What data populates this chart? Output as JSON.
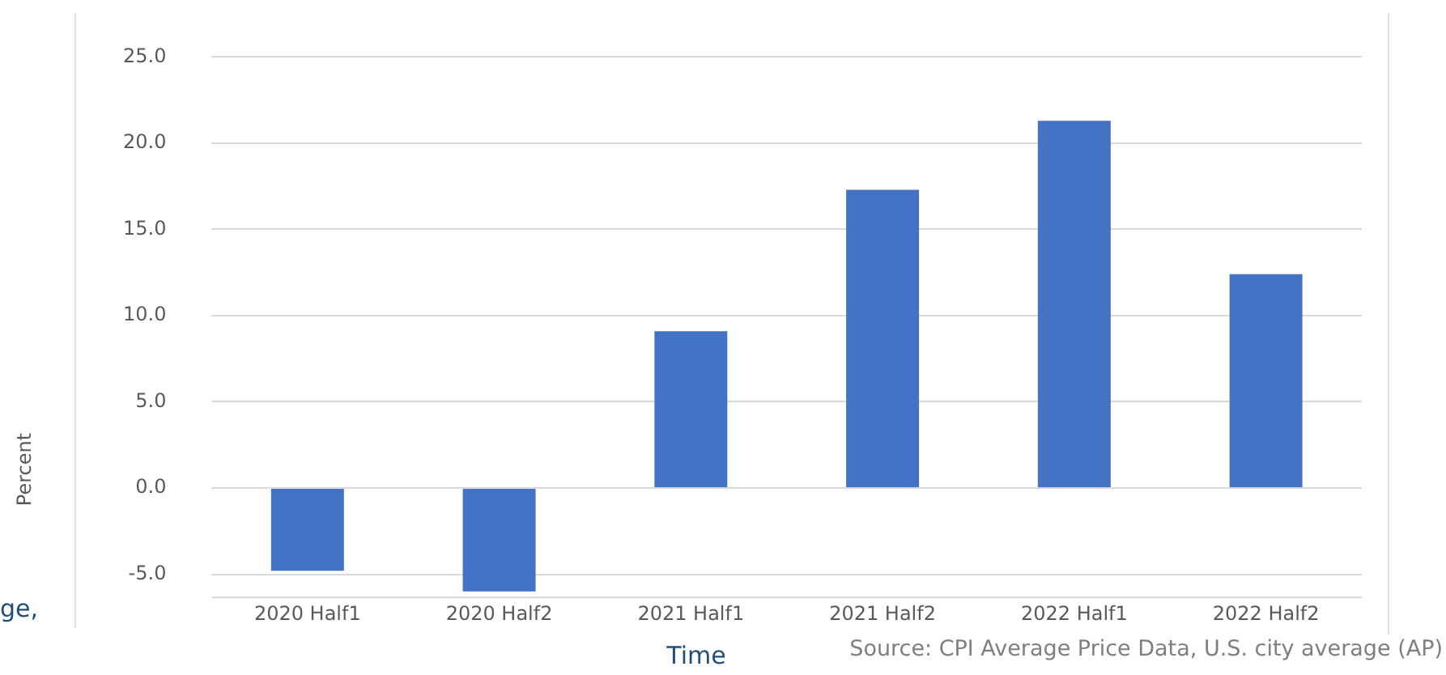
{
  "chart_data": {
    "type": "bar",
    "xlabel": "Time",
    "ylabel": "Percent",
    "categories": [
      "2020 Half1",
      "2020 Half2",
      "2021 Half1",
      "2021 Half2",
      "2022 Half1",
      "2022 Half2"
    ],
    "values": [
      -4.8,
      -6.0,
      9.1,
      17.3,
      21.3,
      12.4
    ],
    "color": "#4472c4",
    "ylim": [
      -6.3,
      25
    ],
    "yticks": [
      {
        "value": -5,
        "label": "-5.0"
      },
      {
        "value": 0,
        "label": "0.0"
      },
      {
        "value": 5,
        "label": "5.0"
      },
      {
        "value": 10,
        "label": "10.0"
      },
      {
        "value": 15,
        "label": "15.0"
      },
      {
        "value": 20,
        "label": "20.0"
      },
      {
        "value": 25,
        "label": "25.0"
      }
    ],
    "grid": "y",
    "legend": false,
    "annotations": [
      "ge,",
      "Source: CPI Average Price Data, U.S. city average (AP)"
    ]
  }
}
